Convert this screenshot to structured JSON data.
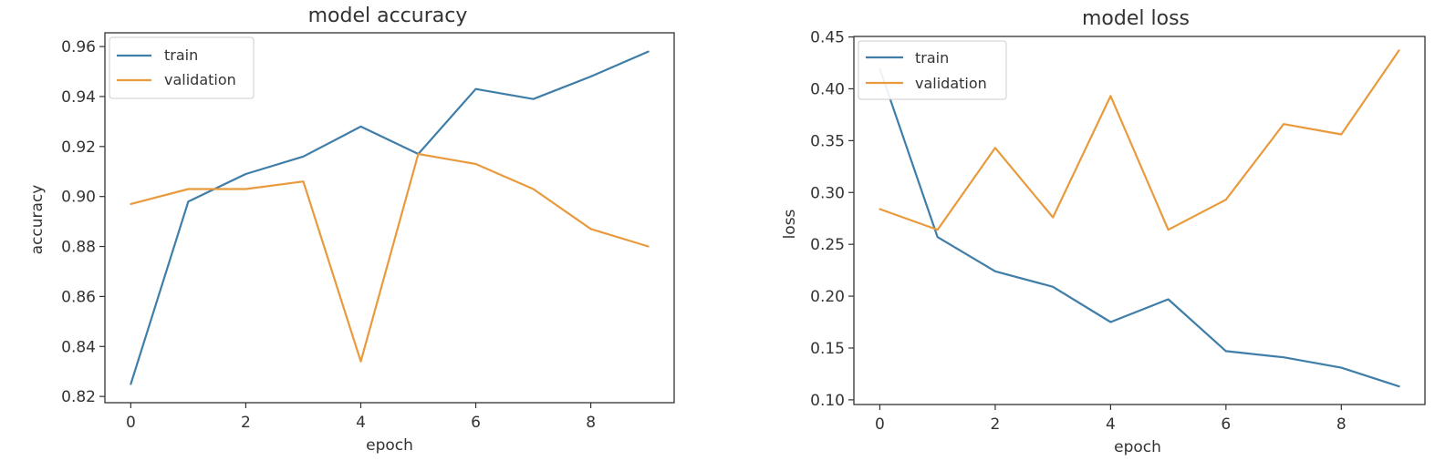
{
  "colors": {
    "train": "#3f7ea8",
    "validation": "#e89a3c",
    "axis": "#333333"
  },
  "chart_data": [
    {
      "type": "line",
      "title": "model accuracy",
      "xlabel": "epoch",
      "ylabel": "accuracy",
      "x": [
        0,
        1,
        2,
        3,
        4,
        5,
        6,
        7,
        8,
        9
      ],
      "xlim": [
        -0.45,
        9.45
      ],
      "ylim": [
        0.8175,
        0.9655
      ],
      "xticks": [
        0,
        2,
        4,
        6,
        8
      ],
      "xtick_labels": [
        "0",
        "2",
        "4",
        "6",
        "8"
      ],
      "yticks": [
        0.82,
        0.84,
        0.86,
        0.88,
        0.9,
        0.92,
        0.94,
        0.96
      ],
      "ytick_labels": [
        "0.82",
        "0.84",
        "0.86",
        "0.88",
        "0.90",
        "0.92",
        "0.94",
        "0.96"
      ],
      "legend_position": "top-left",
      "series": [
        {
          "name": "train",
          "color": "#3f7ea8",
          "values": [
            0.825,
            0.898,
            0.909,
            0.916,
            0.928,
            0.917,
            0.943,
            0.939,
            0.948,
            0.958
          ]
        },
        {
          "name": "validation",
          "color": "#e89a3c",
          "values": [
            0.897,
            0.903,
            0.903,
            0.906,
            0.834,
            0.917,
            0.913,
            0.903,
            0.887,
            0.88
          ]
        }
      ]
    },
    {
      "type": "line",
      "title": "model loss",
      "xlabel": "epoch",
      "ylabel": "loss",
      "x": [
        0,
        1,
        2,
        3,
        4,
        5,
        6,
        7,
        8,
        9
      ],
      "xlim": [
        -0.45,
        9.45
      ],
      "ylim": [
        0.0955,
        0.4505
      ],
      "xticks": [
        0,
        2,
        4,
        6,
        8
      ],
      "xtick_labels": [
        "0",
        "2",
        "4",
        "6",
        "8"
      ],
      "yticks": [
        0.1,
        0.15,
        0.2,
        0.25,
        0.3,
        0.35,
        0.4,
        0.45
      ],
      "ytick_labels": [
        "0.10",
        "0.15",
        "0.20",
        "0.25",
        "0.30",
        "0.35",
        "0.40",
        "0.45"
      ],
      "legend_position": "top-left",
      "series": [
        {
          "name": "train",
          "color": "#3f7ea8",
          "values": [
            0.419,
            0.257,
            0.224,
            0.209,
            0.175,
            0.197,
            0.147,
            0.141,
            0.131,
            0.113
          ]
        },
        {
          "name": "validation",
          "color": "#e89a3c",
          "values": [
            0.284,
            0.264,
            0.343,
            0.276,
            0.393,
            0.264,
            0.293,
            0.366,
            0.356,
            0.437
          ]
        }
      ]
    }
  ]
}
